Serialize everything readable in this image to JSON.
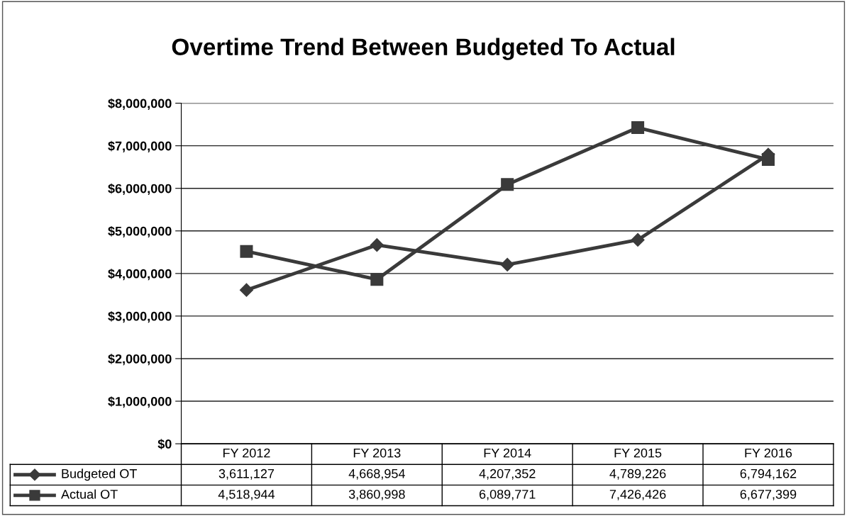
{
  "chart_data": {
    "type": "line",
    "title": "Overtime Trend Between Budgeted To Actual",
    "categories": [
      "FY 2012",
      "FY 2013",
      "FY 2014",
      "FY 2015",
      "FY 2016"
    ],
    "series": [
      {
        "name": "Budgeted OT",
        "color": "#3a3a3a",
        "marker": "diamond",
        "values": [
          3611127,
          4668954,
          4207352,
          4789226,
          6794162
        ],
        "value_labels": [
          "3,611,127",
          "4,668,954",
          "4,207,352",
          "4,789,226",
          "6,794,162"
        ]
      },
      {
        "name": "Actual OT",
        "color": "#3a3a3a",
        "marker": "square",
        "values": [
          4518944,
          3860998,
          6089771,
          7426426,
          6677399
        ],
        "value_labels": [
          "4,518,944",
          "3,860,998",
          "6,089,771",
          "7,426,426",
          "6,677,399"
        ]
      }
    ],
    "ylim": [
      0,
      8000000
    ],
    "yticks": [
      {
        "value": 0,
        "label": "$0"
      },
      {
        "value": 1000000,
        "label": "$1,000,000"
      },
      {
        "value": 2000000,
        "label": "$2,000,000"
      },
      {
        "value": 3000000,
        "label": "$3,000,000"
      },
      {
        "value": 4000000,
        "label": "$4,000,000"
      },
      {
        "value": 5000000,
        "label": "$5,000,000"
      },
      {
        "value": 6000000,
        "label": "$6,000,000"
      },
      {
        "value": 7000000,
        "label": "$7,000,000"
      },
      {
        "value": 8000000,
        "label": "$8,000,000"
      }
    ],
    "grid": "y",
    "legend": "bottom left"
  }
}
